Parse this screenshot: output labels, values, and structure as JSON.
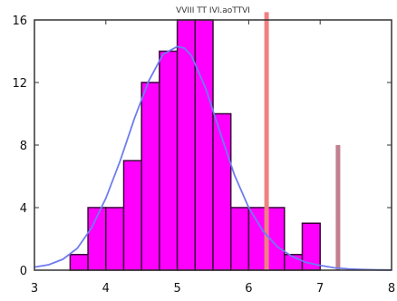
{
  "chart_data": {
    "type": "bar",
    "title": "VVIII TT IVI.aoTTVI",
    "xlim": [
      3,
      8
    ],
    "ylim": [
      0,
      16
    ],
    "xticks": [
      3,
      4,
      5,
      6,
      7,
      8
    ],
    "yticks": [
      0,
      4,
      8,
      12,
      16
    ],
    "grid": false,
    "bin_width": 0.25,
    "bins": [
      {
        "start": 3.5,
        "value": 1
      },
      {
        "start": 3.75,
        "value": 4
      },
      {
        "start": 4.0,
        "value": 4
      },
      {
        "start": 4.25,
        "value": 7
      },
      {
        "start": 4.5,
        "value": 12
      },
      {
        "start": 4.75,
        "value": 14
      },
      {
        "start": 5.0,
        "value": 16
      },
      {
        "start": 5.25,
        "value": 16
      },
      {
        "start": 5.5,
        "value": 10
      },
      {
        "start": 5.75,
        "value": 4
      },
      {
        "start": 6.0,
        "value": 4
      },
      {
        "start": 6.25,
        "value": 4
      },
      {
        "start": 6.5,
        "value": 1
      },
      {
        "start": 6.75,
        "value": 3
      },
      {
        "start": 7.0,
        "value": 0
      },
      {
        "start": 7.25,
        "value": 0
      }
    ],
    "density_curve": {
      "x": [
        3.0,
        3.2,
        3.4,
        3.6,
        3.8,
        4.0,
        4.2,
        4.4,
        4.6,
        4.8,
        5.0,
        5.1,
        5.2,
        5.4,
        5.6,
        5.8,
        6.0,
        6.2,
        6.4,
        6.6,
        6.8,
        7.0,
        7.2,
        7.4,
        7.6,
        7.8,
        8.0
      ],
      "y": [
        0.2,
        0.35,
        0.7,
        1.4,
        2.7,
        4.6,
        7.0,
        9.7,
        12.1,
        13.8,
        14.3,
        14.2,
        13.7,
        11.6,
        8.8,
        6.1,
        4.0,
        2.5,
        1.5,
        0.9,
        0.5,
        0.3,
        0.15,
        0.08,
        0.04,
        0.02,
        0.01
      ]
    },
    "reference_lines": [
      {
        "x": 6.25,
        "y_top": 16.5,
        "color": "#f08080"
      },
      {
        "x": 7.25,
        "y_top": 8.0,
        "color": "#c08090"
      }
    ],
    "colors": {
      "bar_fill": "#ff00ff",
      "bar_stroke": "#3a003a",
      "curve": "#6f7cf0",
      "axis": "#333333"
    }
  }
}
